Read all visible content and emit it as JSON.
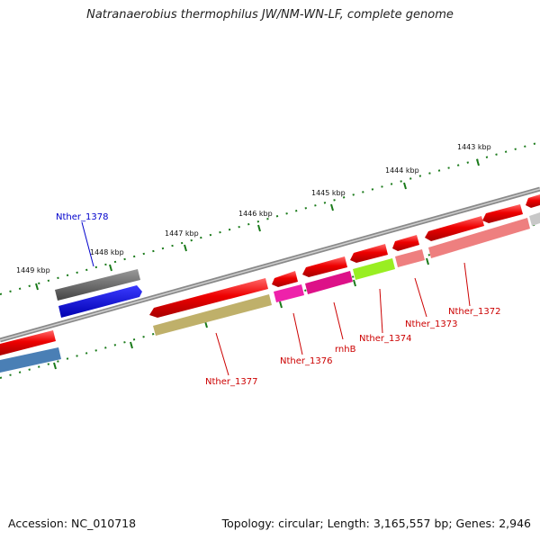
{
  "title": "Natranaerobius thermophilus JW/NM-WN-LF, complete genome",
  "footer": {
    "accession": "Accession: NC_010718",
    "stats": "Topology: circular; Length: 3,165,557 bp; Genes: 2,946"
  },
  "kbp_ticks": [
    "1449 kbp",
    "1448 kbp",
    "1447 kbp",
    "1446 kbp",
    "1445 kbp",
    "1444 kbp",
    "1443 kbp"
  ],
  "gene_labels": [
    {
      "id": "nther_1378",
      "text": "Nther_1378",
      "color": "#0000cc"
    },
    {
      "id": "nther_1377",
      "text": "Nther_1377",
      "color": "#cc0000"
    },
    {
      "id": "nther_1376",
      "text": "Nther_1376",
      "color": "#cc0000"
    },
    {
      "id": "rnhb",
      "text": "rnhB",
      "color": "#cc0000"
    },
    {
      "id": "nther_1374",
      "text": "Nther_1374",
      "color": "#cc0000"
    },
    {
      "id": "nther_1373",
      "text": "Nther_1373",
      "color": "#cc0000"
    },
    {
      "id": "nther_1372",
      "text": "Nther_1372",
      "color": "#cc0000"
    }
  ],
  "colors": {
    "backbone": "#8a8a8a",
    "cds": "#ee0000",
    "gene_tick": "#1a7a1a"
  }
}
